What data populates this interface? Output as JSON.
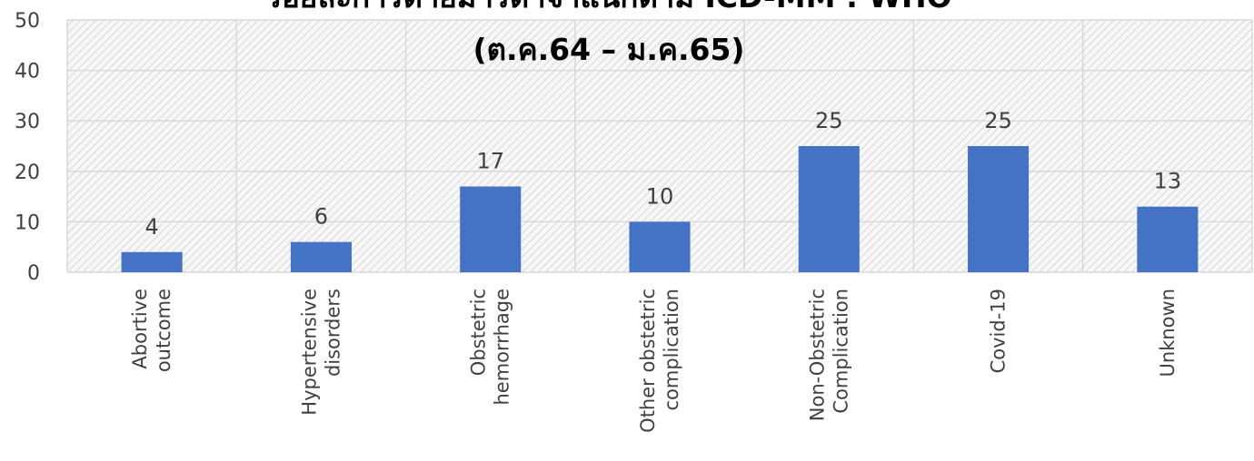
{
  "chart_data": {
    "type": "bar",
    "title": "ร้อยละการตายมารดาจำแนกตาม ICD-MM : WHO",
    "subtitle": "(ต.ค.64 – ม.ค.65)",
    "categories": [
      [
        "Abortive",
        "outcome"
      ],
      [
        "Hypertensive",
        "disorders"
      ],
      [
        "Obstetric",
        "hemorrhage"
      ],
      [
        "Other obstetric",
        "complication"
      ],
      [
        "Non-Obstetric",
        "Complication"
      ],
      [
        "Covid-19"
      ],
      [
        "Unknown"
      ]
    ],
    "values": [
      4,
      6,
      17,
      10,
      25,
      25,
      13
    ],
    "data_labels": [
      "4",
      "6",
      "17",
      "10",
      "25",
      "25",
      "13"
    ],
    "ylim": [
      0,
      50
    ],
    "yticks": [
      "0",
      "10",
      "20",
      "30",
      "40",
      "50"
    ],
    "xlabel": "",
    "ylabel": "",
    "grid": true,
    "legend": "none",
    "bar_color": "#4472C4",
    "plot_fill": "#f2f2f2",
    "grid_color": "#d9d9d9"
  }
}
